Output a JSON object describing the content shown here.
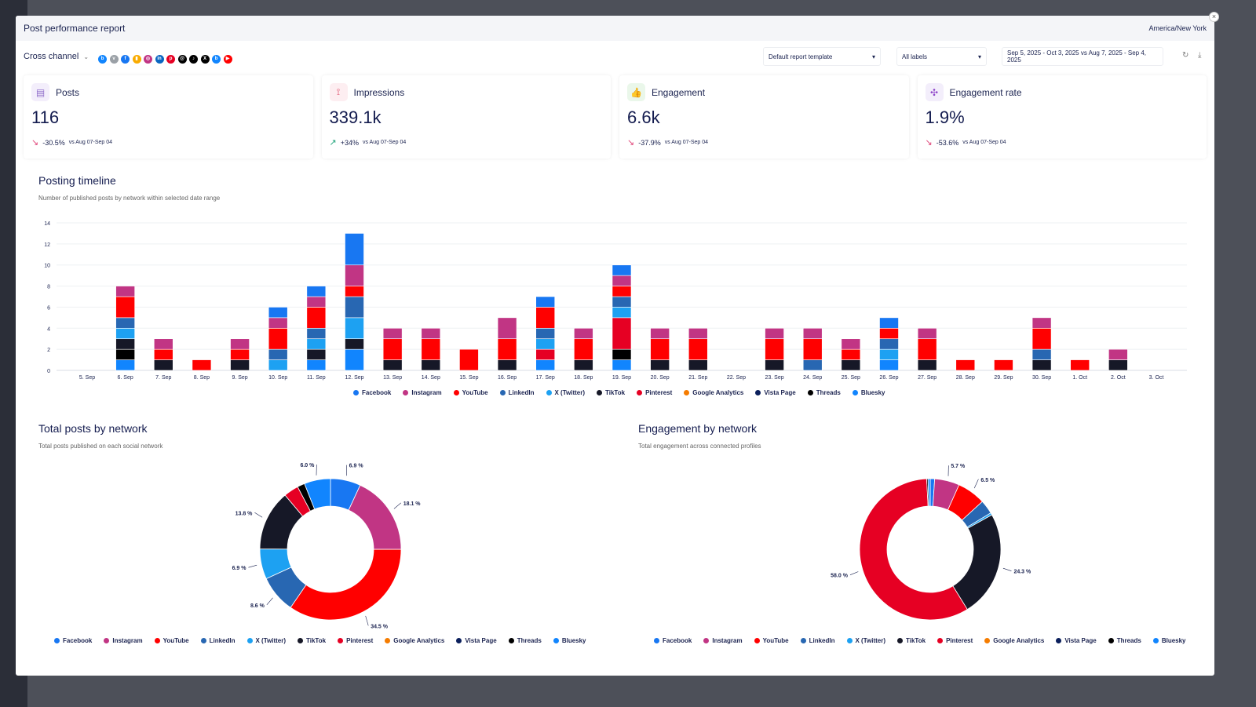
{
  "modal": {
    "title": "Post performance report",
    "timezone": "America/New York"
  },
  "toolbar": {
    "channel": "Cross channel",
    "networks": [
      {
        "name": "bluesky",
        "color": "#1185fe",
        "g": "b"
      },
      {
        "name": "vista",
        "color": "#9aa0a6",
        "g": "v"
      },
      {
        "name": "facebook",
        "color": "#1877f2",
        "g": "f"
      },
      {
        "name": "google-analytics",
        "color": "#f9ab00",
        "g": "▮"
      },
      {
        "name": "instagram",
        "color": "#c13584",
        "g": "◎"
      },
      {
        "name": "linkedin",
        "color": "#0a66c2",
        "g": "in"
      },
      {
        "name": "pinterest",
        "color": "#e60023",
        "g": "p"
      },
      {
        "name": "threads",
        "color": "#000000",
        "g": "@"
      },
      {
        "name": "tiktok",
        "color": "#000000",
        "g": "♪"
      },
      {
        "name": "x",
        "color": "#000000",
        "g": "X"
      },
      {
        "name": "bluesky-alt",
        "color": "#1185fe",
        "g": "b"
      },
      {
        "name": "youtube",
        "color": "#ff0000",
        "g": "▶"
      }
    ],
    "template": "Default report template",
    "labels": "All labels",
    "date_range": "Sep 5, 2025 - Oct 3, 2025 vs Aug 7, 2025 - Sep 4, 2025"
  },
  "cards": [
    {
      "label": "Posts",
      "value": "116",
      "delta": "-30.5%",
      "trend": "down",
      "vs": "vs Aug 07-Sep 04",
      "icon": "document-icon",
      "icon_bg": "#f3eefb",
      "icon_color": "#8e6cc9",
      "glyph": "▤"
    },
    {
      "label": "Impressions",
      "value": "339.1k",
      "delta": "+34%",
      "trend": "up",
      "vs": "vs Aug 07-Sep 04",
      "icon": "impressions-icon",
      "icon_bg": "#fdeef1",
      "icon_color": "#e0536f",
      "glyph": "⟟"
    },
    {
      "label": "Engagement",
      "value": "6.6k",
      "delta": "-37.9%",
      "trend": "down",
      "vs": "vs Aug 07-Sep 04",
      "icon": "thumbs-up-icon",
      "icon_bg": "#eaf7ea",
      "icon_color": "#4caf50",
      "glyph": "👍"
    },
    {
      "label": "Engagement rate",
      "value": "1.9%",
      "delta": "-53.6%",
      "trend": "down",
      "vs": "vs Aug 07-Sep 04",
      "icon": "network-icon",
      "icon_bg": "#f3eefb",
      "icon_color": "#8e44c9",
      "glyph": "✣"
    }
  ],
  "timeline": {
    "title": "Posting timeline",
    "subtitle": "Number of published posts by network within selected date range"
  },
  "total_posts": {
    "title": "Total posts by network",
    "subtitle": "Total posts published on each social network"
  },
  "engagement": {
    "title": "Engagement by network",
    "subtitle": "Total engagement across connected profiles"
  },
  "colors": {
    "Facebook": "#1877f2",
    "Instagram": "#c13584",
    "YouTube": "#ff0000",
    "LinkedIn": "#2867b2",
    "X (Twitter)": "#1da1f2",
    "TikTok": "#161827",
    "Pinterest": "#e60023",
    "Google Analytics": "#f57c00",
    "Vista Page": "#0b1f5c",
    "Threads": "#000000",
    "Bluesky": "#1185fe"
  },
  "chart_data": [
    {
      "type": "bar",
      "stacked": true,
      "ylim": [
        0,
        14
      ],
      "yticks": [
        0,
        2,
        4,
        6,
        8,
        10,
        12,
        14
      ],
      "grid": true,
      "legend": "bottom",
      "categories": [
        "5. Sep",
        "6. Sep",
        "7. Sep",
        "8. Sep",
        "9. Sep",
        "10. Sep",
        "11. Sep",
        "12. Sep",
        "13. Sep",
        "14. Sep",
        "15. Sep",
        "16. Sep",
        "17. Sep",
        "18. Sep",
        "19. Sep",
        "20. Sep",
        "21. Sep",
        "22. Sep",
        "23. Sep",
        "24. Sep",
        "25. Sep",
        "26. Sep",
        "27. Sep",
        "28. Sep",
        "29. Sep",
        "30. Sep",
        "1. Oct",
        "2. Oct",
        "3. Oct"
      ],
      "series": [
        {
          "name": "Facebook",
          "values": [
            0,
            0,
            0,
            0,
            0,
            1,
            1,
            3,
            0,
            0,
            0,
            0,
            1,
            0,
            1,
            0,
            0,
            0,
            0,
            0,
            0,
            1,
            0,
            0,
            0,
            0,
            0,
            0,
            0
          ]
        },
        {
          "name": "Instagram",
          "values": [
            0,
            1,
            1,
            0,
            1,
            1,
            1,
            2,
            1,
            1,
            0,
            2,
            0,
            1,
            1,
            1,
            1,
            0,
            1,
            1,
            1,
            0,
            1,
            0,
            0,
            1,
            0,
            1,
            0
          ]
        },
        {
          "name": "YouTube",
          "values": [
            0,
            2,
            1,
            1,
            1,
            2,
            2,
            1,
            2,
            2,
            2,
            2,
            2,
            2,
            1,
            2,
            2,
            0,
            2,
            2,
            1,
            1,
            2,
            1,
            1,
            2,
            1,
            0,
            0
          ]
        },
        {
          "name": "LinkedIn",
          "values": [
            0,
            1,
            0,
            0,
            0,
            1,
            1,
            2,
            0,
            0,
            0,
            0,
            1,
            0,
            1,
            0,
            0,
            0,
            0,
            1,
            0,
            1,
            0,
            0,
            0,
            1,
            0,
            0,
            0
          ]
        },
        {
          "name": "X (Twitter)",
          "values": [
            0,
            1,
            0,
            0,
            0,
            1,
            1,
            2,
            0,
            0,
            0,
            0,
            1,
            0,
            1,
            0,
            0,
            0,
            0,
            0,
            0,
            1,
            0,
            0,
            0,
            0,
            0,
            0,
            0
          ]
        },
        {
          "name": "TikTok",
          "values": [
            0,
            1,
            1,
            0,
            1,
            0,
            1,
            1,
            1,
            1,
            0,
            1,
            0,
            1,
            0,
            1,
            1,
            0,
            1,
            0,
            1,
            0,
            1,
            0,
            0,
            1,
            0,
            1,
            0
          ]
        },
        {
          "name": "Pinterest",
          "values": [
            0,
            0,
            0,
            0,
            0,
            0,
            0,
            0,
            0,
            0,
            0,
            0,
            1,
            0,
            3,
            0,
            0,
            0,
            0,
            0,
            0,
            0,
            0,
            0,
            0,
            0,
            0,
            0,
            0
          ]
        },
        {
          "name": "Google Analytics",
          "values": [
            0,
            0,
            0,
            0,
            0,
            0,
            0,
            0,
            0,
            0,
            0,
            0,
            0,
            0,
            0,
            0,
            0,
            0,
            0,
            0,
            0,
            0,
            0,
            0,
            0,
            0,
            0,
            0,
            0
          ]
        },
        {
          "name": "Vista Page",
          "values": [
            0,
            0,
            0,
            0,
            0,
            0,
            0,
            0,
            0,
            0,
            0,
            0,
            0,
            0,
            0,
            0,
            0,
            0,
            0,
            0,
            0,
            0,
            0,
            0,
            0,
            0,
            0,
            0,
            0
          ]
        },
        {
          "name": "Threads",
          "values": [
            0,
            1,
            0,
            0,
            0,
            0,
            0,
            0,
            0,
            0,
            0,
            0,
            0,
            0,
            1,
            0,
            0,
            0,
            0,
            0,
            0,
            0,
            0,
            0,
            0,
            0,
            0,
            0,
            0
          ]
        },
        {
          "name": "Bluesky",
          "values": [
            0,
            1,
            0,
            0,
            0,
            0,
            1,
            2,
            0,
            0,
            0,
            0,
            1,
            0,
            1,
            0,
            0,
            0,
            0,
            0,
            0,
            1,
            0,
            0,
            0,
            0,
            0,
            0,
            0
          ]
        }
      ]
    },
    {
      "type": "pie",
      "donut": true,
      "legend": "bottom",
      "slices": [
        {
          "name": "Facebook",
          "value": 6.9,
          "label": "6.9 %"
        },
        {
          "name": "Instagram",
          "value": 18.1,
          "label": "18.1 %"
        },
        {
          "name": "YouTube",
          "value": 34.5,
          "label": "34.5 %"
        },
        {
          "name": "LinkedIn",
          "value": 8.6,
          "label": "8.6 %"
        },
        {
          "name": "X (Twitter)",
          "value": 6.9,
          "label": "6.9 %"
        },
        {
          "name": "TikTok",
          "value": 13.8,
          "label": "13.8 %"
        },
        {
          "name": "Pinterest",
          "value": 3.4,
          "label": ""
        },
        {
          "name": "Threads",
          "value": 1.7,
          "label": ""
        },
        {
          "name": "Bluesky",
          "value": 6.0,
          "label": "6.0 %"
        }
      ]
    },
    {
      "type": "pie",
      "donut": true,
      "legend": "bottom",
      "slices": [
        {
          "name": "Facebook",
          "value": 1.0,
          "label": ""
        },
        {
          "name": "Instagram",
          "value": 5.7,
          "label": "5.7 %"
        },
        {
          "name": "YouTube",
          "value": 6.5,
          "label": "6.5 %"
        },
        {
          "name": "LinkedIn",
          "value": 3.2,
          "label": ""
        },
        {
          "name": "X (Twitter)",
          "value": 0.5,
          "label": ""
        },
        {
          "name": "TikTok",
          "value": 24.3,
          "label": "24.3 %"
        },
        {
          "name": "Pinterest",
          "value": 58.0,
          "label": "58.0 %"
        },
        {
          "name": "Threads",
          "value": 0.3,
          "label": ""
        },
        {
          "name": "Bluesky",
          "value": 0.5,
          "label": ""
        }
      ]
    }
  ],
  "legend_items": [
    "Facebook",
    "Instagram",
    "YouTube",
    "LinkedIn",
    "X (Twitter)",
    "TikTok",
    "Pinterest",
    "Google Analytics",
    "Vista Page",
    "Threads",
    "Bluesky"
  ]
}
